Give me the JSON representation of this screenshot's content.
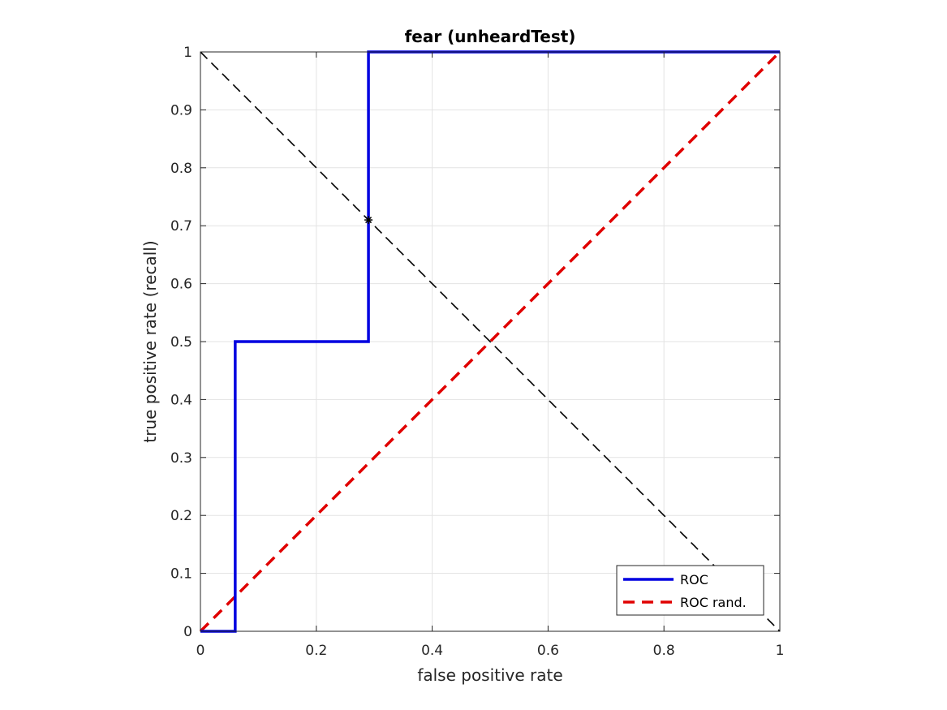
{
  "chart_data": {
    "type": "line",
    "title": "fear (unheardTest)",
    "xlabel": "false positive rate",
    "ylabel": "true positive rate (recall)",
    "xlim": [
      0,
      1
    ],
    "ylim": [
      0,
      1
    ],
    "grid": true,
    "legend_position": "bottom-right",
    "x_ticks": [
      "0",
      "0.2",
      "0.4",
      "0.6",
      "0.8",
      "1"
    ],
    "y_ticks": [
      "0",
      "0.1",
      "0.2",
      "0.3",
      "0.4",
      "0.5",
      "0.6",
      "0.7",
      "0.8",
      "0.9",
      "1"
    ],
    "series": [
      {
        "name": "ROC",
        "color": "#0000e0",
        "style": "solid",
        "x": [
          0,
          0.06,
          0.06,
          0.29,
          0.29,
          1
        ],
        "y": [
          0,
          0,
          0.5,
          0.5,
          1,
          1
        ]
      },
      {
        "name": "ROC rand.",
        "color": "#e00000",
        "style": "dashed",
        "x": [
          0,
          1
        ],
        "y": [
          0,
          1
        ]
      }
    ],
    "annotations": [
      {
        "type": "line",
        "color": "#000000",
        "style": "dashed",
        "x": [
          0,
          1
        ],
        "y": [
          1,
          0
        ]
      },
      {
        "type": "marker",
        "symbol": "asterisk",
        "color": "#000000",
        "x": 0.29,
        "y": 0.71
      }
    ]
  }
}
